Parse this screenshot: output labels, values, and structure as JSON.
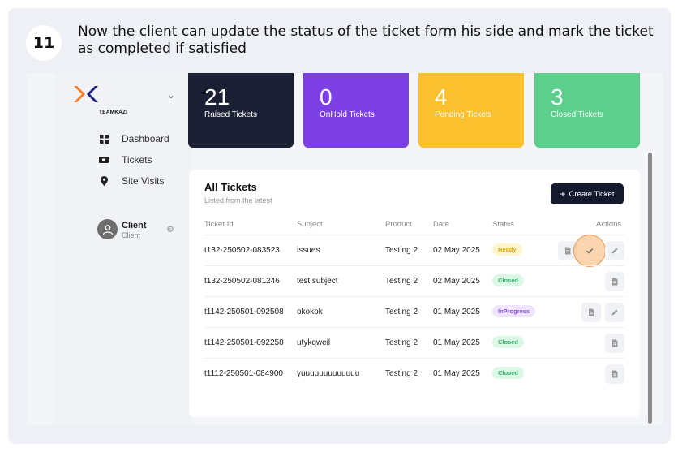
{
  "step": {
    "number": "11",
    "instruction": "Now the client can update the status of the ticket form his side and mark the ticket as completed if satisfied"
  },
  "sidebar": {
    "brand": "TEAMKAZI",
    "nav": [
      {
        "label": "Dashboard",
        "icon": "dashboard-icon"
      },
      {
        "label": "Tickets",
        "icon": "ticket-icon"
      },
      {
        "label": "Site Visits",
        "icon": "location-pin-icon"
      }
    ],
    "user": {
      "name": "Client",
      "role": "Client"
    }
  },
  "stats": [
    {
      "value": "21",
      "label": "Raised Tickets",
      "color": "#1b1f33"
    },
    {
      "value": "0",
      "label": "OnHold Tickets",
      "color": "#7b3fe4"
    },
    {
      "value": "4",
      "label": "Pending Tickets",
      "color": "#fbc02d"
    },
    {
      "value": "3",
      "label": "Closed Tickets",
      "color": "#5ccf8c"
    }
  ],
  "tickets": {
    "title": "All Tickets",
    "subtitle": "Listed from the latest",
    "create_label": "Create Ticket",
    "columns": {
      "id": "Ticket Id",
      "subject": "Subject",
      "product": "Product",
      "date": "Date",
      "status": "Status",
      "actions": "Actions"
    },
    "rows": [
      {
        "id": "t132-250502-083523",
        "subject": "issues",
        "product": "Testing 2",
        "date": "02 May 2025",
        "status": "Ready"
      },
      {
        "id": "t132-250502-081246",
        "subject": "test subject",
        "product": "Testing 2",
        "date": "02 May 2025",
        "status": "Closed"
      },
      {
        "id": "t1142-250501-092508",
        "subject": "okokok",
        "product": "Testing 2",
        "date": "01 May 2025",
        "status": "InProgress"
      },
      {
        "id": "t1142-250501-092258",
        "subject": "utykqweil",
        "product": "Testing 2",
        "date": "01 May 2025",
        "status": "Closed"
      },
      {
        "id": "t1112-250501-084900",
        "subject": "yuuuuuuuuuuuuu",
        "product": "Testing 2",
        "date": "01 May 2025",
        "status": "Closed"
      }
    ]
  }
}
